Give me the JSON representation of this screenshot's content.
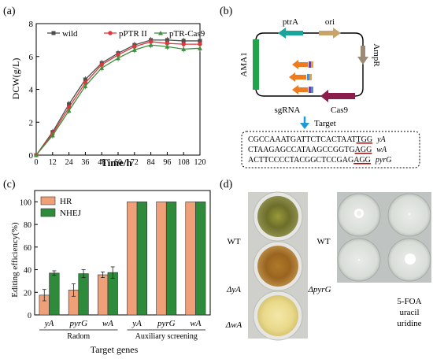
{
  "colors": {
    "wild": "#4d4d4d",
    "pptr": "#e0383a",
    "ptr_cas9": "#3e8e3e",
    "hr": "#f0a078",
    "nhej": "#2e8b3c",
    "ama1": "#22a54a",
    "ptrA": "#1aa59a",
    "ori": "#c8a46a",
    "ampR": "#9c8a74",
    "cas9": "#8a1e4a",
    "sgrna": "#f07a1e",
    "target_arrow": "#1e9bd7",
    "underline": "#e02020"
  },
  "panel_a": {
    "label": "(a)",
    "chart_data": {
      "type": "line",
      "x": [
        0,
        12,
        24,
        36,
        48,
        60,
        72,
        84,
        96,
        108,
        120
      ],
      "xlabel": "Time/h",
      "ylabel": "DCW(g/L)",
      "xlim": [
        0,
        120
      ],
      "ylim": [
        0,
        8
      ],
      "yticks": [
        0,
        2,
        4,
        6,
        8
      ],
      "xticks": [
        "0",
        "12",
        "24",
        "36",
        "48",
        "60",
        "72",
        "84",
        "96",
        "108",
        "120"
      ],
      "legend_position": "top",
      "series": [
        {
          "name": "wild",
          "marker": "square",
          "values": [
            0,
            1.4,
            3.1,
            4.6,
            5.6,
            6.2,
            6.7,
            7.0,
            7.0,
            6.95,
            6.95
          ]
        },
        {
          "name": "pPTR II",
          "marker": "circle",
          "values": [
            0,
            1.3,
            2.9,
            4.4,
            5.5,
            6.1,
            6.6,
            6.9,
            6.8,
            6.75,
            6.75
          ]
        },
        {
          "name": "pTR-Cas9",
          "marker": "triangle",
          "values": [
            0,
            1.2,
            2.7,
            4.2,
            5.3,
            5.9,
            6.4,
            6.7,
            6.6,
            6.45,
            6.5
          ]
        }
      ]
    }
  },
  "panel_b": {
    "label": "(b)",
    "plasmid_labels": {
      "ptrA": "ptrA",
      "ori": "ori",
      "ama1": "AMA1",
      "ampR": "AmpR",
      "sgrna": "sgRNA",
      "cas9": "Cas9"
    },
    "target_label": "Target",
    "sequences": [
      {
        "prefix": "CGCCAAATGATTCTCACTAAT",
        "pam": "TGG",
        "gene": "yA"
      },
      {
        "prefix": "CTAAGAGCCATAAGCCGGTG",
        "pam": "AGG",
        "gene": "wA"
      },
      {
        "prefix": "ACTTCCCCTACGGCTCCGAG",
        "pam": "AGG",
        "gene": "pyrG"
      }
    ]
  },
  "panel_c": {
    "label": "(c)",
    "chart_data": {
      "type": "bar",
      "categories": [
        "yA",
        "pyrG",
        "wA",
        "yA",
        "pyrG",
        "wA"
      ],
      "groups": [
        {
          "label": "Radom",
          "categories": [
            "yA",
            "pyrG",
            "wA"
          ]
        },
        {
          "label": "Auxiliary screening",
          "categories": [
            "yA",
            "pyrG",
            "wA"
          ]
        }
      ],
      "series": [
        {
          "name": "HR",
          "values": [
            17.5,
            22,
            35.5,
            100,
            100,
            100
          ],
          "errors": [
            5,
            5.5,
            2.5,
            0,
            0,
            0
          ]
        },
        {
          "name": "NHEJ",
          "values": [
            37,
            36.5,
            37.5,
            100,
            100,
            100
          ],
          "errors": [
            2,
            3.5,
            5,
            0,
            0,
            0
          ]
        }
      ],
      "xlabel": "Target genes",
      "ylabel": "Editing efficiency(%)",
      "ylim": [
        0,
        110
      ],
      "yticks": [
        0,
        20,
        40,
        60,
        80,
        100
      ],
      "legend_position": "top-left"
    }
  },
  "panel_d": {
    "label": "(d)",
    "left_labels": {
      "wt": "WT",
      "ya": "ΔyA",
      "wa": "ΔwA"
    },
    "right_labels": {
      "wt": "WT",
      "pyrg": "ΔpyrG"
    },
    "medium_lines": [
      "5-FOA",
      "uracil",
      "uridine"
    ]
  }
}
